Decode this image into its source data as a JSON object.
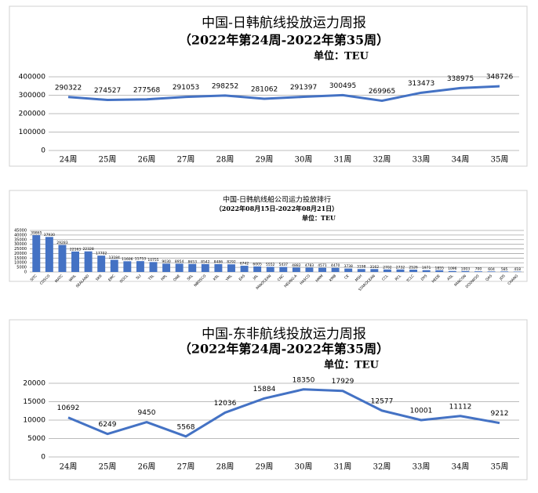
{
  "chart_data": [
    {
      "type": "line",
      "title": "中国-日韩航线投放运力周报",
      "subtitle": "（2022年第24周-2022年第35周）",
      "unit": "单位：TEU",
      "categories": [
        "24周",
        "25周",
        "26周",
        "27周",
        "28周",
        "29周",
        "30周",
        "31周",
        "32周",
        "33周",
        "34周",
        "35周"
      ],
      "values": [
        290322,
        274527,
        277568,
        291053,
        298252,
        281062,
        291397,
        300495,
        269965,
        313473,
        338975,
        348726
      ],
      "color": "#4472c4",
      "ylim": [
        0,
        400000
      ],
      "yticks": [
        0,
        100000,
        200000,
        300000,
        400000
      ],
      "grid": true
    },
    {
      "type": "bar",
      "title": "中国-日韩航线船公司运力投放排行",
      "subtitle": "（2022年08月15日-2022年08月21日）",
      "unit": "单位：TEU",
      "categories": [
        "SITC",
        "COSCO",
        "MATC",
        "WHL",
        "SEALAND",
        "SKR",
        "EMC",
        "OOCL",
        "SLI",
        "TSL",
        "HPL",
        "ONE",
        "SKL",
        "NBOSCO",
        "KSL",
        "YML",
        "EAS",
        "JAL",
        "PANOCEAN",
        "CNC",
        "HEUNG-A",
        "HASCO",
        "HMM",
        "KMB",
        "CK",
        "MSH",
        "STAROCEAN",
        "CCL",
        "RCL",
        "TCLC",
        "DYS",
        "HEDE",
        "ASL",
        "PANCON",
        "DOOWOO",
        "QAS",
        "JDS",
        "CHANG"
      ],
      "values": [
        39865,
        37930,
        29283,
        22163,
        22328,
        17702,
        13184,
        11606,
        11753,
        10755,
        9030,
        8954,
        8653,
        8542,
        8486,
        8292,
        6742,
        6005,
        5552,
        5437,
        4882,
        4783,
        4571,
        4470,
        3738,
        3198,
        3162,
        2702,
        2732,
        2526,
        1971,
        1855,
        1096,
        1003,
        700,
        604,
        585,
        418
      ],
      "color": "#4472c4",
      "ylim": [
        0,
        45000
      ],
      "yticks": [
        0,
        5000,
        10000,
        15000,
        20000,
        25000,
        30000,
        35000,
        40000,
        45000
      ],
      "grid": true
    },
    {
      "type": "line",
      "title": "中国-东非航线投放运力周报",
      "subtitle": "（2022年第24周-2022年第35周）",
      "unit": "单位：TEU",
      "categories": [
        "24周",
        "25周",
        "26周",
        "27周",
        "28周",
        "29周",
        "30周",
        "31周",
        "32周",
        "33周",
        "34周",
        "35周"
      ],
      "values": [
        10692,
        6249,
        9450,
        5568,
        12036,
        15884,
        18350,
        17929,
        12577,
        10001,
        11112,
        9212
      ],
      "color": "#4472c4",
      "ylim": [
        0,
        20000
      ],
      "yticks": [
        0,
        5000,
        10000,
        15000,
        20000
      ],
      "grid": true
    }
  ]
}
